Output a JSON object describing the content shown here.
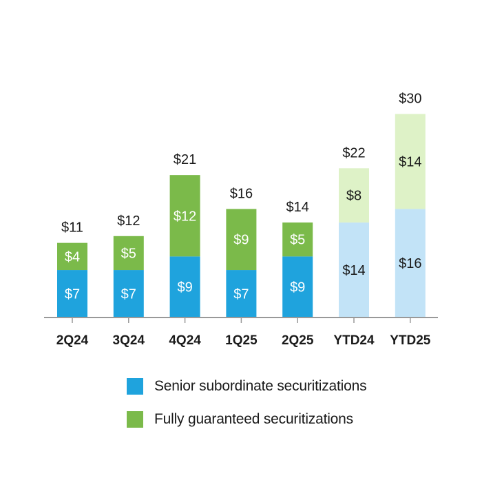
{
  "chart_data": {
    "type": "bar",
    "stacked": true,
    "categories": [
      "2Q24",
      "3Q24",
      "4Q24",
      "1Q25",
      "2Q25",
      "YTD24",
      "YTD25"
    ],
    "series": [
      {
        "name": "Senior subordinate securitizations",
        "values": [
          7,
          7,
          9,
          7,
          9,
          14,
          16
        ],
        "labels": [
          "$7",
          "$7",
          "$9",
          "$7",
          "$9",
          "$14",
          "$16"
        ],
        "color": "#1fa3dd",
        "light_color": "#c2e3f7"
      },
      {
        "name": "Fully guaranteed securitizations",
        "values": [
          4,
          5,
          12,
          9,
          5,
          8,
          14
        ],
        "labels": [
          "$4",
          "$5",
          "$12",
          "$9",
          "$5",
          "$8",
          "$14"
        ],
        "color": "#7bba4a",
        "light_color": "#def2c7"
      }
    ],
    "totals": [
      11,
      12,
      21,
      16,
      14,
      22,
      30
    ],
    "total_labels": [
      "$11",
      "$12",
      "$21",
      "$16",
      "$14",
      "$22",
      "$30"
    ],
    "light_categories": [
      "YTD24",
      "YTD25"
    ],
    "title": "",
    "xlabel": "",
    "ylabel": "",
    "ylim": [
      0,
      30
    ],
    "grid": false,
    "legend_position": "bottom"
  },
  "legend": {
    "senior_label": "Senior subordinate securitizations",
    "senior_color": "#1fa3dd",
    "guaranteed_label": "Fully guaranteed securitizations",
    "guaranteed_color": "#7bba4a"
  },
  "colors": {
    "axis": "#999999",
    "label_dark": "#1a1a1a",
    "label_light": "#ffffff"
  }
}
